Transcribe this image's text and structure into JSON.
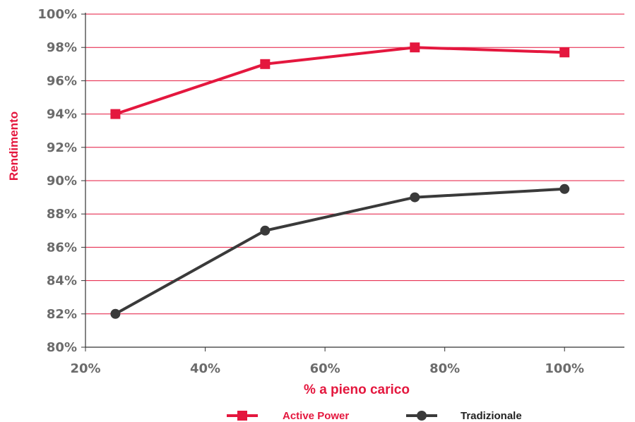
{
  "chart_data": {
    "type": "line",
    "title": "",
    "xlabel": "% a pieno carico",
    "ylabel": "Rendimento",
    "xlim": [
      20,
      110
    ],
    "ylim": [
      80,
      100
    ],
    "x_ticks": [
      "20%",
      "40%",
      "60%",
      "80%",
      "100%"
    ],
    "x_tick_values": [
      20,
      40,
      60,
      80,
      100
    ],
    "y_ticks": [
      "80%",
      "82%",
      "84%",
      "86%",
      "88%",
      "90%",
      "92%",
      "94%",
      "96%",
      "98%",
      "100%"
    ],
    "y_tick_values": [
      80,
      82,
      84,
      86,
      88,
      90,
      92,
      94,
      96,
      98,
      100
    ],
    "grid": "horizontal",
    "legend_position": "bottom",
    "series": [
      {
        "name": "Active Power",
        "color": "#e4173e",
        "marker": "square",
        "x": [
          25,
          50,
          75,
          100
        ],
        "y": [
          94,
          97,
          98,
          97.7
        ]
      },
      {
        "name": "Tradizionale",
        "color": "#3a3a3a",
        "marker": "circle",
        "x": [
          25,
          50,
          75,
          100
        ],
        "y": [
          82,
          87,
          89,
          89.5
        ]
      }
    ]
  }
}
